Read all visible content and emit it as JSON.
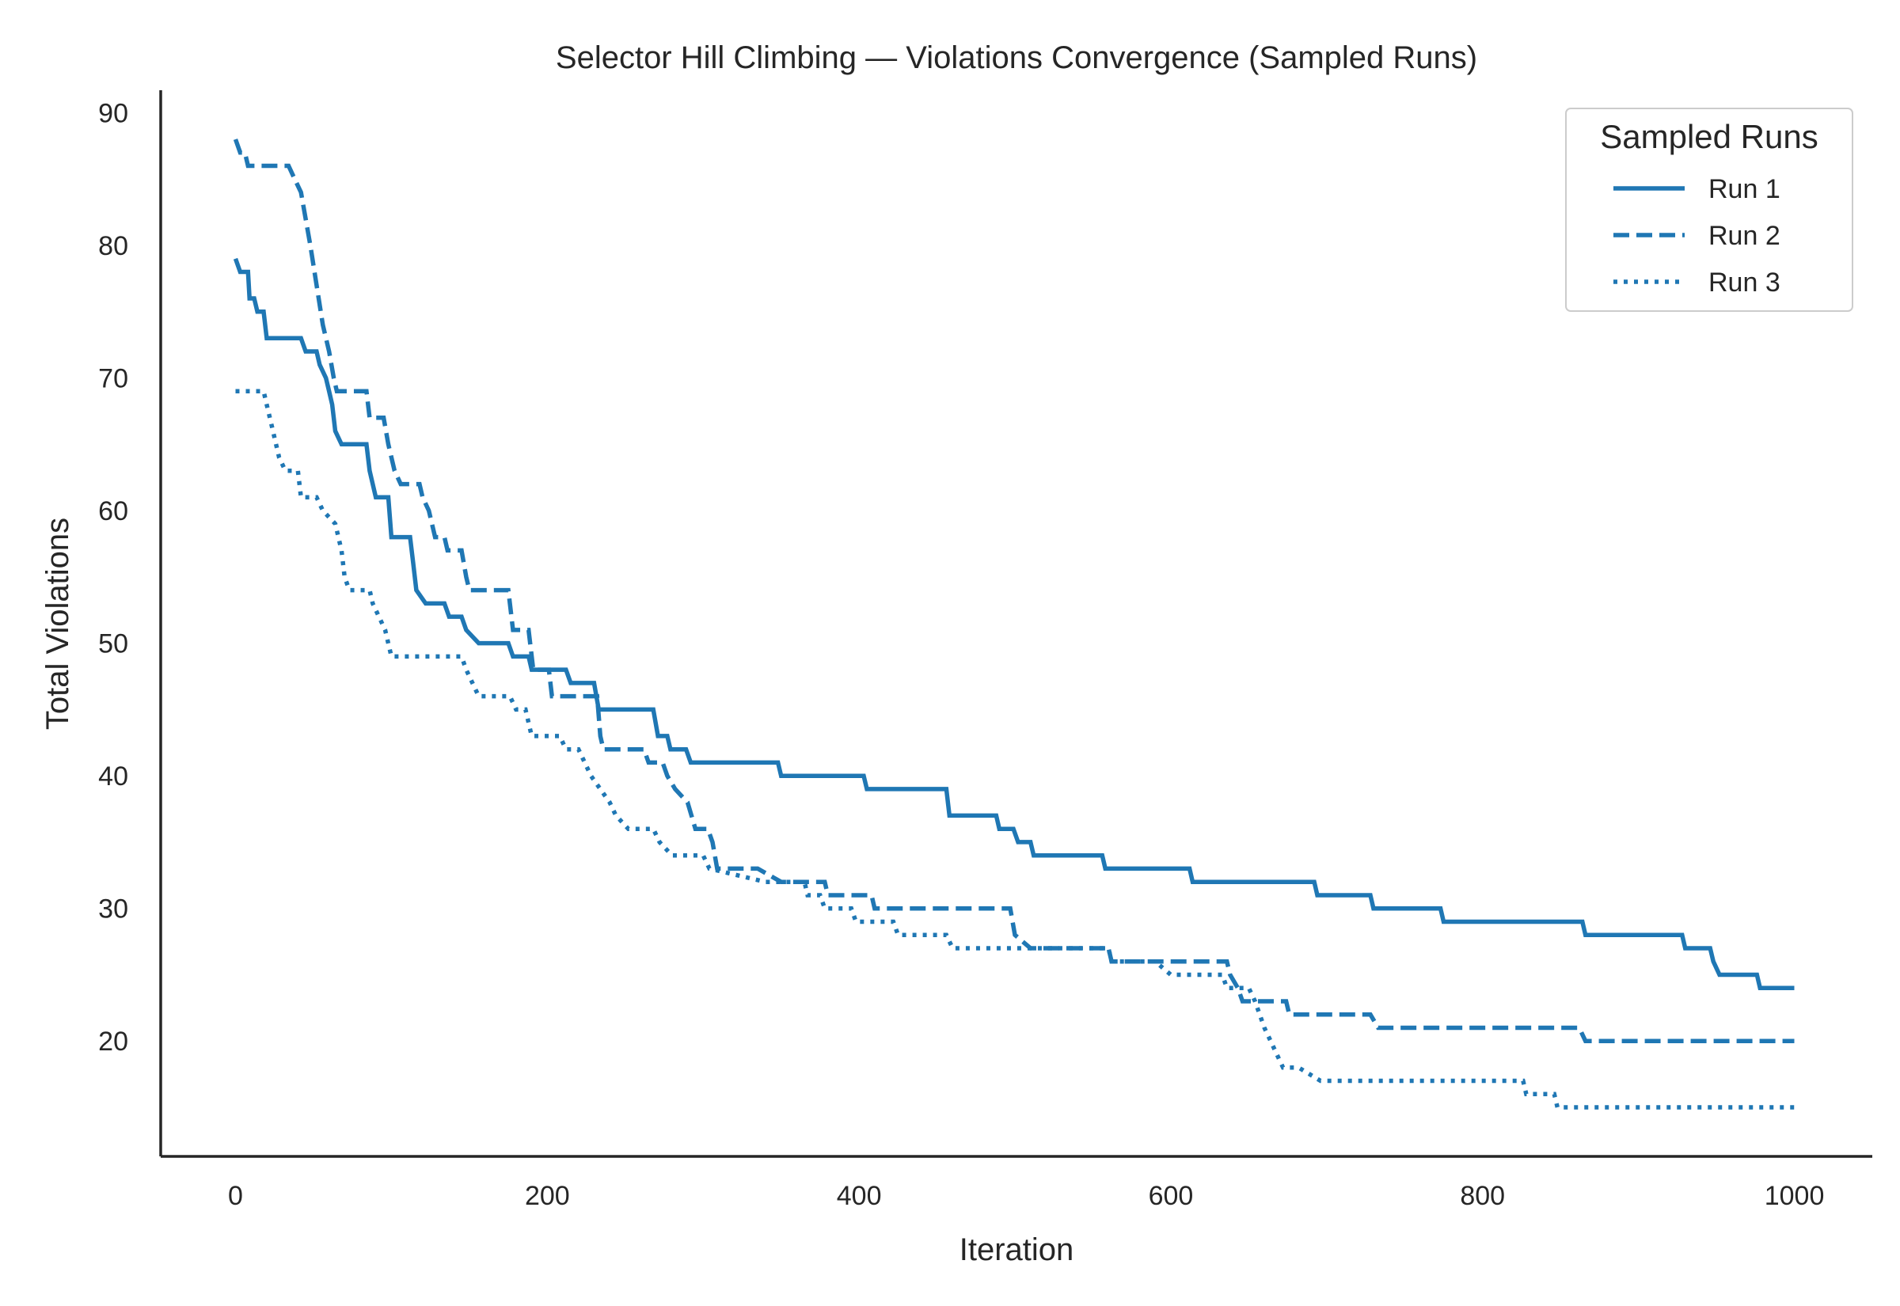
{
  "chart_data": {
    "type": "line",
    "title": "Selector Hill Climbing — Violations Convergence (Sampled Runs)",
    "xlabel": "Iteration",
    "ylabel": "Total Violations",
    "xlim": [
      -48,
      1050
    ],
    "ylim": [
      11.3,
      91.7
    ],
    "xticks": [
      0,
      200,
      400,
      600,
      800,
      1000
    ],
    "yticks": [
      20,
      30,
      40,
      50,
      60,
      70,
      80,
      90
    ],
    "grid": false,
    "legend": {
      "title": "Sampled Runs",
      "position": "top-right"
    },
    "line_color": "#1f77b4",
    "series": [
      {
        "name": "Run 1",
        "style": "solid",
        "points": [
          [
            0,
            79
          ],
          [
            3,
            78
          ],
          [
            8,
            78
          ],
          [
            9,
            76
          ],
          [
            12,
            76
          ],
          [
            14,
            75
          ],
          [
            18,
            75
          ],
          [
            20,
            73
          ],
          [
            42,
            73
          ],
          [
            45,
            72
          ],
          [
            52,
            72
          ],
          [
            54,
            71
          ],
          [
            58,
            70
          ],
          [
            60,
            69
          ],
          [
            62,
            68
          ],
          [
            64,
            66
          ],
          [
            68,
            65
          ],
          [
            84,
            65
          ],
          [
            86,
            63
          ],
          [
            90,
            61
          ],
          [
            98,
            61
          ],
          [
            100,
            58
          ],
          [
            112,
            58
          ],
          [
            114,
            56
          ],
          [
            116,
            54
          ],
          [
            122,
            53
          ],
          [
            134,
            53
          ],
          [
            137,
            52
          ],
          [
            145,
            52
          ],
          [
            148,
            51
          ],
          [
            156,
            50
          ],
          [
            175,
            50
          ],
          [
            178,
            49
          ],
          [
            188,
            49
          ],
          [
            190,
            48
          ],
          [
            212,
            48
          ],
          [
            215,
            47
          ],
          [
            230,
            47
          ],
          [
            233,
            45
          ],
          [
            268,
            45
          ],
          [
            271,
            43
          ],
          [
            277,
            43
          ],
          [
            279,
            42
          ],
          [
            289,
            42
          ],
          [
            292,
            41
          ],
          [
            348,
            41
          ],
          [
            350,
            40
          ],
          [
            403,
            40
          ],
          [
            405,
            39
          ],
          [
            456,
            39
          ],
          [
            458,
            37
          ],
          [
            488,
            37
          ],
          [
            490,
            36
          ],
          [
            499,
            36
          ],
          [
            502,
            35
          ],
          [
            510,
            35
          ],
          [
            512,
            34
          ],
          [
            556,
            34
          ],
          [
            558,
            33
          ],
          [
            612,
            33
          ],
          [
            614,
            32
          ],
          [
            692,
            32
          ],
          [
            694,
            31
          ],
          [
            728,
            31
          ],
          [
            730,
            30
          ],
          [
            773,
            30
          ],
          [
            775,
            29
          ],
          [
            864,
            29
          ],
          [
            866,
            28
          ],
          [
            928,
            28
          ],
          [
            930,
            27
          ],
          [
            946,
            27
          ],
          [
            948,
            26
          ],
          [
            952,
            25
          ],
          [
            976,
            25
          ],
          [
            978,
            24
          ],
          [
            1000,
            24
          ]
        ]
      },
      {
        "name": "Run 2",
        "style": "dashed",
        "points": [
          [
            0,
            88
          ],
          [
            3,
            87
          ],
          [
            6,
            87
          ],
          [
            8,
            86
          ],
          [
            34,
            86
          ],
          [
            38,
            85
          ],
          [
            42,
            84
          ],
          [
            45,
            82
          ],
          [
            48,
            80
          ],
          [
            52,
            77
          ],
          [
            56,
            74
          ],
          [
            60,
            72
          ],
          [
            63,
            70
          ],
          [
            65,
            69
          ],
          [
            84,
            69
          ],
          [
            86,
            67
          ],
          [
            95,
            67
          ],
          [
            98,
            65
          ],
          [
            102,
            63
          ],
          [
            106,
            62
          ],
          [
            118,
            62
          ],
          [
            120,
            61
          ],
          [
            124,
            60
          ],
          [
            128,
            58
          ],
          [
            134,
            58
          ],
          [
            136,
            57
          ],
          [
            145,
            57
          ],
          [
            148,
            55
          ],
          [
            150,
            54
          ],
          [
            175,
            54
          ],
          [
            178,
            51
          ],
          [
            188,
            51
          ],
          [
            191,
            48
          ],
          [
            201,
            48
          ],
          [
            203,
            46
          ],
          [
            232,
            46
          ],
          [
            234,
            43
          ],
          [
            236,
            42
          ],
          [
            262,
            42
          ],
          [
            265,
            41
          ],
          [
            274,
            41
          ],
          [
            277,
            40
          ],
          [
            282,
            39
          ],
          [
            290,
            38
          ],
          [
            295,
            36
          ],
          [
            303,
            36
          ],
          [
            306,
            35
          ],
          [
            309,
            33
          ],
          [
            335,
            33
          ],
          [
            350,
            32
          ],
          [
            378,
            32
          ],
          [
            380,
            31
          ],
          [
            408,
            31
          ],
          [
            410,
            30
          ],
          [
            497,
            30
          ],
          [
            500,
            28
          ],
          [
            510,
            27
          ],
          [
            560,
            27
          ],
          [
            562,
            26
          ],
          [
            636,
            26
          ],
          [
            638,
            25
          ],
          [
            643,
            24
          ],
          [
            646,
            23
          ],
          [
            674,
            23
          ],
          [
            676,
            22
          ],
          [
            703,
            22
          ],
          [
            728,
            22
          ],
          [
            733,
            21
          ],
          [
            862,
            21
          ],
          [
            866,
            20
          ],
          [
            1000,
            20
          ]
        ]
      },
      {
        "name": "Run 3",
        "style": "dotted",
        "points": [
          [
            0,
            69
          ],
          [
            18,
            69
          ],
          [
            20,
            68
          ],
          [
            24,
            66
          ],
          [
            28,
            64
          ],
          [
            32,
            63
          ],
          [
            40,
            63
          ],
          [
            42,
            61
          ],
          [
            52,
            61
          ],
          [
            56,
            60
          ],
          [
            64,
            59
          ],
          [
            68,
            57
          ],
          [
            70,
            55
          ],
          [
            73,
            54
          ],
          [
            86,
            54
          ],
          [
            88,
            53
          ],
          [
            96,
            51
          ],
          [
            100,
            49
          ],
          [
            145,
            49
          ],
          [
            148,
            48
          ],
          [
            152,
            47
          ],
          [
            156,
            46
          ],
          [
            176,
            46
          ],
          [
            180,
            45
          ],
          [
            186,
            45
          ],
          [
            190,
            43
          ],
          [
            208,
            43
          ],
          [
            212,
            42
          ],
          [
            220,
            42
          ],
          [
            224,
            41
          ],
          [
            228,
            40
          ],
          [
            234,
            39
          ],
          [
            240,
            38
          ],
          [
            244,
            37
          ],
          [
            252,
            36
          ],
          [
            268,
            36
          ],
          [
            272,
            35
          ],
          [
            280,
            34
          ],
          [
            300,
            34
          ],
          [
            304,
            33
          ],
          [
            340,
            32
          ],
          [
            365,
            32
          ],
          [
            367,
            31
          ],
          [
            375,
            31
          ],
          [
            378,
            30
          ],
          [
            395,
            30
          ],
          [
            398,
            29
          ],
          [
            422,
            29
          ],
          [
            425,
            28
          ],
          [
            456,
            28
          ],
          [
            460,
            27
          ],
          [
            499,
            27
          ],
          [
            501,
            27
          ],
          [
            560,
            27
          ],
          [
            562,
            26
          ],
          [
            590,
            26
          ],
          [
            600,
            25
          ],
          [
            633,
            25
          ],
          [
            636,
            24
          ],
          [
            650,
            24
          ],
          [
            654,
            23
          ],
          [
            657,
            22
          ],
          [
            660,
            21
          ],
          [
            664,
            20
          ],
          [
            668,
            19
          ],
          [
            672,
            18
          ],
          [
            682,
            18
          ],
          [
            696,
            17
          ],
          [
            740,
            17
          ],
          [
            758,
            17
          ],
          [
            826,
            17
          ],
          [
            828,
            16
          ],
          [
            846,
            16
          ],
          [
            848,
            15
          ],
          [
            1000,
            15
          ]
        ]
      }
    ]
  }
}
